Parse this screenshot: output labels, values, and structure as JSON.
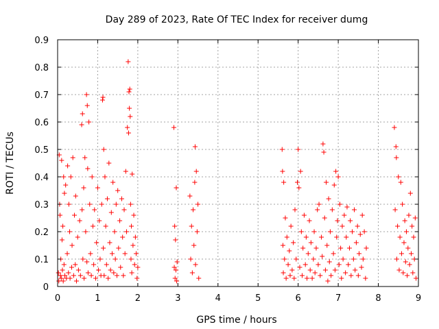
{
  "chart_data": {
    "type": "scatter",
    "title": "Day 289 of 2023, Rate Of TEC Index for receiver dumg",
    "xlabel": "GPS time / hours",
    "ylabel": "ROTI / TECUs",
    "xlim": [
      0,
      9
    ],
    "ylim": [
      0,
      0.9
    ],
    "xticks": [
      0,
      1,
      2,
      3,
      4,
      5,
      6,
      7,
      8,
      9
    ],
    "xtick_labels": [
      "0",
      "1",
      "2",
      "3",
      "4",
      "5",
      "6",
      "7",
      "8",
      "9"
    ],
    "yticks": [
      0,
      0.1,
      0.2,
      0.3,
      0.4,
      0.5,
      0.6,
      0.7,
      0.8,
      0.9
    ],
    "ytick_labels": [
      "0",
      "0.1",
      "0.2",
      "0.3",
      "0.4",
      "0.5",
      "0.6",
      "0.7",
      "0.8",
      "0.9"
    ],
    "grid": true,
    "marker": "+",
    "color": "#ff0000",
    "series": [
      {
        "points": [
          [
            0.02,
            0.05
          ],
          [
            0.03,
            0.02
          ],
          [
            0.04,
            0.48
          ],
          [
            0.05,
            0.3
          ],
          [
            0.06,
            0.26
          ],
          [
            0.07,
            0.04
          ],
          [
            0.08,
            0.1
          ],
          [
            0.09,
            0.03
          ],
          [
            0.1,
            0.46
          ],
          [
            0.11,
            0.17
          ],
          [
            0.12,
            0.06
          ],
          [
            0.13,
            0.22
          ],
          [
            0.14,
            0.02
          ],
          [
            0.15,
            0.4
          ],
          [
            0.16,
            0.08
          ],
          [
            0.17,
            0.34
          ],
          [
            0.18,
            0.04
          ],
          [
            0.2,
            0.37
          ],
          [
            0.22,
            0.03
          ],
          [
            0.24,
            0.12
          ],
          [
            0.25,
            0.44
          ],
          [
            0.27,
            0.05
          ],
          [
            0.28,
            0.3
          ],
          [
            0.3,
            0.2
          ],
          [
            0.31,
            0.03
          ],
          [
            0.33,
            0.4
          ],
          [
            0.35,
            0.07
          ],
          [
            0.36,
            0.15
          ],
          [
            0.38,
            0.47
          ],
          [
            0.4,
            0.04
          ],
          [
            0.42,
            0.26
          ],
          [
            0.44,
            0.08
          ],
          [
            0.45,
            0.33
          ],
          [
            0.47,
            0.02
          ],
          [
            0.5,
            0.18
          ],
          [
            0.52,
            0.06
          ],
          [
            0.55,
            0.24
          ],
          [
            0.57,
            0.04
          ],
          [
            0.6,
            0.59
          ],
          [
            0.61,
            0.28
          ],
          [
            0.62,
            0.63
          ],
          [
            0.63,
            0.1
          ],
          [
            0.65,
            0.36
          ],
          [
            0.66,
            0.03
          ],
          [
            0.68,
            0.47
          ],
          [
            0.7,
            0.2
          ],
          [
            0.72,
            0.7
          ],
          [
            0.73,
            0.09
          ],
          [
            0.74,
            0.66
          ],
          [
            0.75,
            0.43
          ],
          [
            0.76,
            0.05
          ],
          [
            0.78,
            0.6
          ],
          [
            0.8,
            0.3
          ],
          [
            0.82,
            0.12
          ],
          [
            0.84,
            0.04
          ],
          [
            0.86,
            0.4
          ],
          [
            0.88,
            0.22
          ],
          [
            0.9,
            0.08
          ],
          [
            0.92,
            0.28
          ],
          [
            0.95,
            0.03
          ],
          [
            0.97,
            0.16
          ],
          [
            1.0,
            0.36
          ],
          [
            1.02,
            0.06
          ],
          [
            1.04,
            0.24
          ],
          [
            1.06,
            0.1
          ],
          [
            1.08,
            0.04
          ],
          [
            1.1,
            0.3
          ],
          [
            1.12,
            0.68
          ],
          [
            1.13,
            0.69
          ],
          [
            1.14,
            0.14
          ],
          [
            1.15,
            0.5
          ],
          [
            1.16,
            0.04
          ],
          [
            1.18,
            0.4
          ],
          [
            1.2,
            0.22
          ],
          [
            1.22,
            0.08
          ],
          [
            1.24,
            0.32
          ],
          [
            1.26,
            0.03
          ],
          [
            1.28,
            0.45
          ],
          [
            1.3,
            0.16
          ],
          [
            1.32,
            0.06
          ],
          [
            1.34,
            0.27
          ],
          [
            1.36,
            0.12
          ],
          [
            1.38,
            0.38
          ],
          [
            1.4,
            0.05
          ],
          [
            1.42,
            0.2
          ],
          [
            1.44,
            0.1
          ],
          [
            1.46,
            0.3
          ],
          [
            1.48,
            0.04
          ],
          [
            1.5,
            0.35
          ],
          [
            1.52,
            0.14
          ],
          [
            1.55,
            0.24
          ],
          [
            1.57,
            0.07
          ],
          [
            1.6,
            0.32
          ],
          [
            1.62,
            0.18
          ],
          [
            1.64,
            0.04
          ],
          [
            1.66,
            0.28
          ],
          [
            1.68,
            0.12
          ],
          [
            1.7,
            0.42
          ],
          [
            1.72,
            0.2
          ],
          [
            1.74,
            0.58
          ],
          [
            1.76,
            0.82
          ],
          [
            1.77,
            0.56
          ],
          [
            1.78,
            0.71
          ],
          [
            1.79,
            0.65
          ],
          [
            1.8,
            0.72
          ],
          [
            1.81,
            0.62
          ],
          [
            1.82,
            0.3
          ],
          [
            1.83,
            0.1
          ],
          [
            1.84,
            0.22
          ],
          [
            1.85,
            0.05
          ],
          [
            1.86,
            0.41
          ],
          [
            1.88,
            0.15
          ],
          [
            1.9,
            0.26
          ],
          [
            1.92,
            0.08
          ],
          [
            1.94,
            0.18
          ],
          [
            1.96,
            0.12
          ],
          [
            1.98,
            0.03
          ],
          [
            2.0,
            0.07
          ],
          [
            2.9,
            0.58
          ],
          [
            2.91,
            0.07
          ],
          [
            2.92,
            0.22
          ],
          [
            2.93,
            0.03
          ],
          [
            2.94,
            0.17
          ],
          [
            2.95,
            0.06
          ],
          [
            2.96,
            0.36
          ],
          [
            2.97,
            0.02
          ],
          [
            2.98,
            0.09
          ],
          [
            3.3,
            0.33
          ],
          [
            3.32,
            0.1
          ],
          [
            3.34,
            0.22
          ],
          [
            3.36,
            0.05
          ],
          [
            3.38,
            0.28
          ],
          [
            3.4,
            0.15
          ],
          [
            3.42,
            0.38
          ],
          [
            3.43,
            0.51
          ],
          [
            3.44,
            0.08
          ],
          [
            3.46,
            0.42
          ],
          [
            3.48,
            0.2
          ],
          [
            3.5,
            0.3
          ],
          [
            3.52,
            0.03
          ],
          [
            5.6,
            0.5
          ],
          [
            5.61,
            0.42
          ],
          [
            5.62,
            0.15
          ],
          [
            5.63,
            0.05
          ],
          [
            5.64,
            0.38
          ],
          [
            5.66,
            0.1
          ],
          [
            5.68,
            0.25
          ],
          [
            5.7,
            0.03
          ],
          [
            5.72,
            0.18
          ],
          [
            5.75,
            0.08
          ],
          [
            5.78,
            0.13
          ],
          [
            5.8,
            0.04
          ],
          [
            5.82,
            0.22
          ],
          [
            5.85,
            0.06
          ],
          [
            5.88,
            0.16
          ],
          [
            5.9,
            0.03
          ],
          [
            5.92,
            0.28
          ],
          [
            5.95,
            0.1
          ],
          [
            5.98,
            0.38
          ],
          [
            6.0,
            0.5
          ],
          [
            6.02,
            0.36
          ],
          [
            6.04,
            0.07
          ],
          [
            6.06,
            0.42
          ],
          [
            6.08,
            0.2
          ],
          [
            6.1,
            0.04
          ],
          [
            6.12,
            0.14
          ],
          [
            6.15,
            0.26
          ],
          [
            6.18,
            0.08
          ],
          [
            6.2,
            0.18
          ],
          [
            6.22,
            0.03
          ],
          [
            6.25,
            0.12
          ],
          [
            6.28,
            0.24
          ],
          [
            6.3,
            0.06
          ],
          [
            6.32,
            0.16
          ],
          [
            6.35,
            0.03
          ],
          [
            6.38,
            0.1
          ],
          [
            6.4,
            0.2
          ],
          [
            6.42,
            0.05
          ],
          [
            6.45,
            0.14
          ],
          [
            6.48,
            0.28
          ],
          [
            6.5,
            0.08
          ],
          [
            6.52,
            0.3
          ],
          [
            6.55,
            0.04
          ],
          [
            6.58,
            0.18
          ],
          [
            6.6,
            0.11
          ],
          [
            6.62,
            0.52
          ],
          [
            6.64,
            0.49
          ],
          [
            6.66,
            0.25
          ],
          [
            6.68,
            0.06
          ],
          [
            6.7,
            0.38
          ],
          [
            6.72,
            0.15
          ],
          [
            6.74,
            0.02
          ],
          [
            6.76,
            0.32
          ],
          [
            6.78,
            0.09
          ],
          [
            6.8,
            0.2
          ],
          [
            6.82,
            0.04
          ],
          [
            6.85,
            0.28
          ],
          [
            6.88,
            0.12
          ],
          [
            6.9,
            0.37
          ],
          [
            6.92,
            0.06
          ],
          [
            6.94,
            0.42
          ],
          [
            6.96,
            0.18
          ],
          [
            6.98,
            0.24
          ],
          [
            7.0,
            0.4
          ],
          [
            7.02,
            0.08
          ],
          [
            7.04,
            0.3
          ],
          [
            7.06,
            0.14
          ],
          [
            7.08,
            0.03
          ],
          [
            7.1,
            0.22
          ],
          [
            7.12,
            0.1
          ],
          [
            7.15,
            0.26
          ],
          [
            7.18,
            0.05
          ],
          [
            7.2,
            0.18
          ],
          [
            7.22,
            0.29
          ],
          [
            7.25,
            0.08
          ],
          [
            7.28,
            0.14
          ],
          [
            7.3,
            0.24
          ],
          [
            7.32,
            0.04
          ],
          [
            7.35,
            0.2
          ],
          [
            7.38,
            0.1
          ],
          [
            7.4,
            0.28
          ],
          [
            7.42,
            0.06
          ],
          [
            7.45,
            0.16
          ],
          [
            7.48,
            0.22
          ],
          [
            7.5,
            0.04
          ],
          [
            7.52,
            0.12
          ],
          [
            7.55,
            0.19
          ],
          [
            7.58,
            0.07
          ],
          [
            7.6,
            0.26
          ],
          [
            7.62,
            0.1
          ],
          [
            7.65,
            0.2
          ],
          [
            7.68,
            0.03
          ],
          [
            7.7,
            0.14
          ],
          [
            8.4,
            0.58
          ],
          [
            8.42,
            0.28
          ],
          [
            8.44,
            0.51
          ],
          [
            8.45,
            0.47
          ],
          [
            8.46,
            0.1
          ],
          [
            8.48,
            0.22
          ],
          [
            8.5,
            0.4
          ],
          [
            8.52,
            0.06
          ],
          [
            8.54,
            0.18
          ],
          [
            8.56,
            0.38
          ],
          [
            8.58,
            0.12
          ],
          [
            8.6,
            0.3
          ],
          [
            8.62,
            0.05
          ],
          [
            8.64,
            0.16
          ],
          [
            8.66,
            0.24
          ],
          [
            8.68,
            0.09
          ],
          [
            8.7,
            0.2
          ],
          [
            8.72,
            0.04
          ],
          [
            8.74,
            0.14
          ],
          [
            8.76,
            0.26
          ],
          [
            8.78,
            0.08
          ],
          [
            8.8,
            0.34
          ],
          [
            8.82,
            0.12
          ],
          [
            8.84,
            0.22
          ],
          [
            8.86,
            0.05
          ],
          [
            8.88,
            0.18
          ],
          [
            8.9,
            0.1
          ],
          [
            8.92,
            0.25
          ],
          [
            8.94,
            0.03
          ]
        ]
      }
    ]
  }
}
